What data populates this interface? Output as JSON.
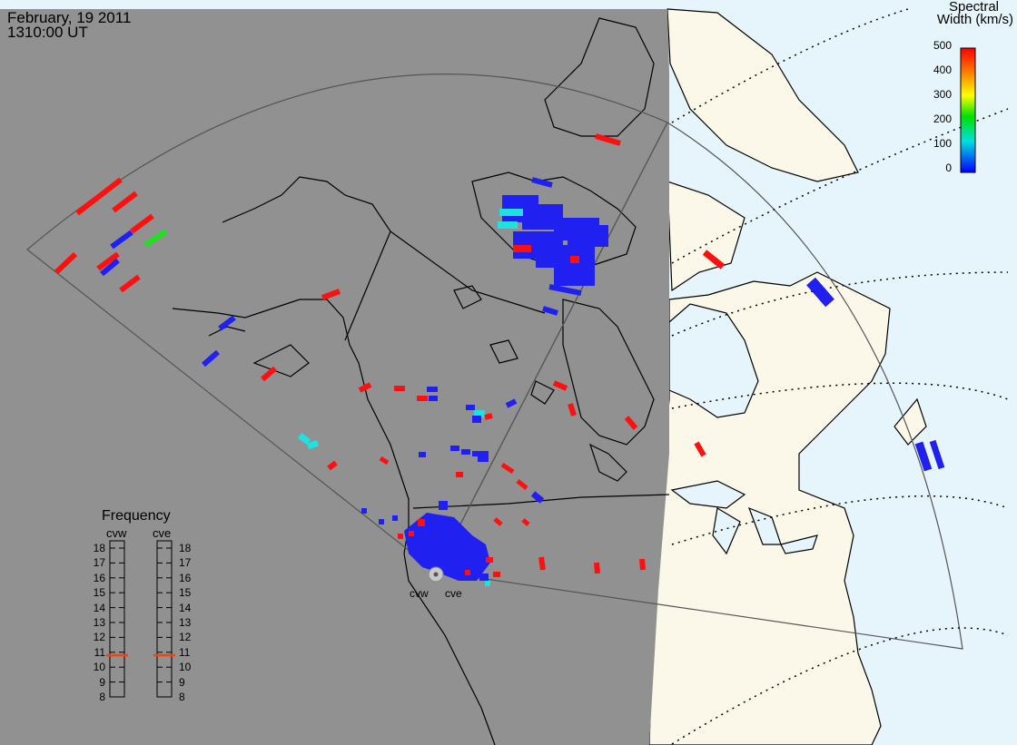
{
  "header": {
    "date": "February, 19 2011",
    "time": "1310:00 UT"
  },
  "colorbar": {
    "title_line1": "Spectral",
    "title_line2": "Width (km/s)",
    "ticks": [
      "500",
      "400",
      "300",
      "200",
      "100",
      "0"
    ],
    "colors": [
      "#ff0000",
      "#ff8000",
      "#ffff00",
      "#00e000",
      "#00e0e0",
      "#0000ff"
    ]
  },
  "frequency_panel": {
    "title": "Frequency",
    "radars": [
      "cvw",
      "cve"
    ],
    "levels": [
      "18",
      "17",
      "16",
      "15",
      "14",
      "13",
      "12",
      "11",
      "10",
      "9",
      "8"
    ],
    "current_mhz": {
      "cvw": 10.8,
      "cve": 10.8
    },
    "marker_color": "#ff4000"
  },
  "radar_sites": {
    "labels": [
      "cvw",
      "cve"
    ]
  },
  "colors": {
    "night": "#919191",
    "day_land": "#fbf8ea",
    "day_ocean": "#e6f4fc",
    "scatter_blue": "#2020f0",
    "scatter_red": "#ff1010",
    "scatter_cyan": "#20e0e0",
    "scatter_green": "#20e020"
  }
}
